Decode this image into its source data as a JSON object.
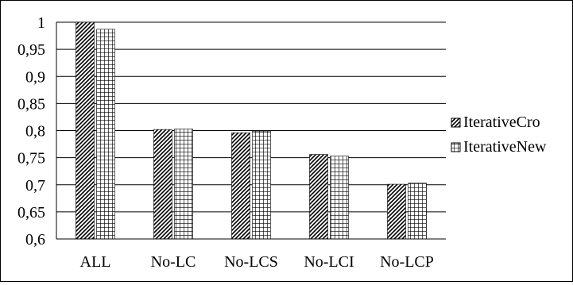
{
  "chart_data": {
    "type": "bar",
    "categories": [
      "ALL",
      "No-LC",
      "No-LCS",
      "No-LCI",
      "No-LCP"
    ],
    "series": [
      {
        "name": "IterativeCro",
        "values": [
          1.0,
          0.802,
          0.796,
          0.756,
          0.701
        ],
        "pattern": "diagonal-hatch"
      },
      {
        "name": "IterativeNew",
        "values": [
          0.987,
          0.803,
          0.799,
          0.753,
          0.703
        ],
        "pattern": "grid-hatch"
      }
    ],
    "yticks": [
      "0,6",
      "0,65",
      "0,7",
      "0,75",
      "0,8",
      "0,85",
      "0,9",
      "0,95",
      "1"
    ],
    "ylim": [
      0.6,
      1.0
    ],
    "ystep": 0.05,
    "grid": true,
    "legend": "right",
    "title": "",
    "xlabel": "",
    "ylabel": ""
  }
}
